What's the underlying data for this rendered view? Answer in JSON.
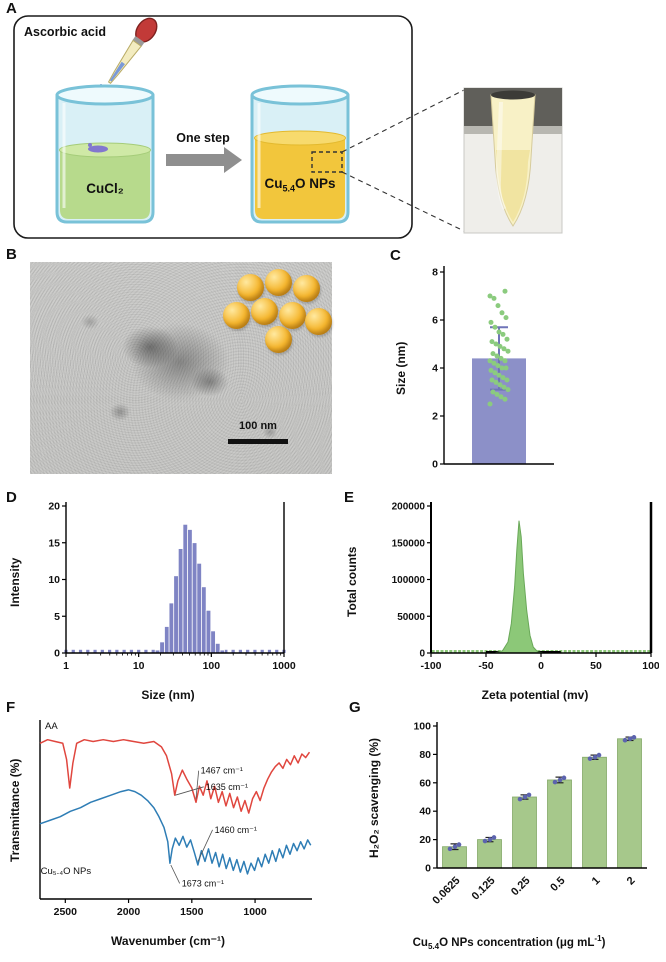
{
  "panelA": {
    "label": "A",
    "ascorbic_label": "Ascorbic acid",
    "one_step_label": "One step",
    "beaker1_label": "CuCl₂",
    "np_label_pre": "Cu",
    "np_label_sub": "5.4",
    "np_label_post": "O NPs"
  },
  "panelB": {
    "label": "B",
    "scalebar_label": "100 nm"
  },
  "panelC": {
    "label": "C"
  },
  "panelD": {
    "label": "D"
  },
  "panelE": {
    "label": "E"
  },
  "panelF": {
    "label": "F"
  },
  "panelG": {
    "label": "G"
  },
  "g_xlabel": {
    "pre": "Cu",
    "sub": "5.4",
    "post": "O NPs concentration  (μg mL",
    "sup": "-1",
    "end": ")"
  },
  "chart_data": [
    {
      "id": "np-size-bar",
      "type": "bar",
      "ylabel": "Size (nm)",
      "ylim": [
        0,
        8
      ],
      "yticks": [
        0,
        2,
        4,
        6,
        8
      ],
      "mean": 4.4,
      "sd": 1.3,
      "bar_color": "#8c90c8",
      "error_color": "#6f74b8",
      "dot_color": "#8bcb7e",
      "points": [
        2.5,
        2.7,
        2.8,
        2.9,
        3.0,
        3.1,
        3.2,
        3.3,
        3.4,
        3.5,
        3.5,
        3.6,
        3.7,
        3.8,
        3.9,
        4.0,
        4.0,
        4.1,
        4.2,
        4.3,
        4.3,
        4.4,
        4.5,
        4.6,
        4.7,
        4.8,
        4.9,
        5.0,
        5.1,
        5.2,
        5.4,
        5.5,
        5.7,
        5.9,
        6.1,
        6.3,
        6.6,
        6.9,
        7.0,
        7.2
      ]
    },
    {
      "id": "dls-intensity",
      "type": "histogram",
      "xlabel": "Size (nm)",
      "ylabel": "Intensity",
      "xscale": "log",
      "xlim": [
        1,
        1000
      ],
      "xticks": [
        1,
        10,
        100,
        1000
      ],
      "ylim": [
        0,
        20
      ],
      "yticks": [
        0,
        5,
        10,
        15,
        20
      ],
      "bar_color": "#7f84c4",
      "marker_color": "#7f84c4",
      "bins": [
        {
          "x": 18.2,
          "y": 0.4
        },
        {
          "x": 21.0,
          "y": 1.5
        },
        {
          "x": 24.4,
          "y": 3.6
        },
        {
          "x": 28.2,
          "y": 6.8
        },
        {
          "x": 32.7,
          "y": 10.5
        },
        {
          "x": 37.8,
          "y": 14.2
        },
        {
          "x": 43.8,
          "y": 17.5
        },
        {
          "x": 50.7,
          "y": 16.8
        },
        {
          "x": 58.8,
          "y": 15.0
        },
        {
          "x": 68.1,
          "y": 12.2
        },
        {
          "x": 78.8,
          "y": 9.0
        },
        {
          "x": 91.3,
          "y": 5.8
        },
        {
          "x": 105.7,
          "y": 3.0
        },
        {
          "x": 122.4,
          "y": 1.3
        },
        {
          "x": 141.8,
          "y": 0.4
        }
      ]
    },
    {
      "id": "zeta-potential",
      "type": "peak",
      "xlabel": "Zeta potential (mv)",
      "ylabel": "Total counts",
      "xlim": [
        -100,
        100
      ],
      "xticks": [
        -100,
        -50,
        0,
        50,
        100
      ],
      "ylim": [
        0,
        200000
      ],
      "yticks": [
        0,
        50000,
        100000,
        150000,
        200000
      ],
      "fill_color": "#8cc878",
      "edge_color": "#69a858",
      "peak_x": -20,
      "peak_y": 180000,
      "peak": [
        [
          -42,
          0
        ],
        [
          -35,
          3000
        ],
        [
          -30,
          15000
        ],
        [
          -27,
          40000
        ],
        [
          -24,
          90000
        ],
        [
          -22,
          140000
        ],
        [
          -20,
          180000
        ],
        [
          -18,
          158000
        ],
        [
          -16,
          108000
        ],
        [
          -13,
          58000
        ],
        [
          -10,
          24000
        ],
        [
          -7,
          8000
        ],
        [
          -3,
          1500
        ],
        [
          2,
          0
        ]
      ]
    },
    {
      "id": "ftir",
      "type": "lines",
      "xlabel": "Wavenumber (cm⁻¹)",
      "ylabel": "Transmittance (%)",
      "xlim": [
        2700,
        550
      ],
      "xticks": [
        2500,
        2000,
        1500,
        1000
      ],
      "series": [
        {
          "name": "AA",
          "color": "#e0463e",
          "label_pos": [
            2660,
            5
          ],
          "points": [
            [
              2700,
              13
            ],
            [
              2640,
              11
            ],
            [
              2580,
              12
            ],
            [
              2520,
              13
            ],
            [
              2490,
              22
            ],
            [
              2465,
              38
            ],
            [
              2440,
              24
            ],
            [
              2410,
              13
            ],
            [
              2350,
              11
            ],
            [
              2280,
              12
            ],
            [
              2200,
              11
            ],
            [
              2120,
              12
            ],
            [
              2040,
              11
            ],
            [
              1960,
              12
            ],
            [
              1880,
              13
            ],
            [
              1800,
              12
            ],
            [
              1740,
              15
            ],
            [
              1700,
              20
            ],
            [
              1660,
              30
            ],
            [
              1635,
              42
            ],
            [
              1610,
              34
            ],
            [
              1575,
              28
            ],
            [
              1540,
              33
            ],
            [
              1500,
              38
            ],
            [
              1467,
              46
            ],
            [
              1440,
              37
            ],
            [
              1410,
              42
            ],
            [
              1380,
              34
            ],
            [
              1350,
              44
            ],
            [
              1320,
              37
            ],
            [
              1290,
              46
            ],
            [
              1260,
              40
            ],
            [
              1230,
              48
            ],
            [
              1200,
              41
            ],
            [
              1170,
              49
            ],
            [
              1140,
              43
            ],
            [
              1110,
              51
            ],
            [
              1080,
              45
            ],
            [
              1050,
              52
            ],
            [
              1020,
              44
            ],
            [
              990,
              40
            ],
            [
              960,
              45
            ],
            [
              930,
              38
            ],
            [
              900,
              33
            ],
            [
              870,
              29
            ],
            [
              840,
              26
            ],
            [
              810,
              24
            ],
            [
              780,
              27
            ],
            [
              750,
              22
            ],
            [
              720,
              25
            ],
            [
              690,
              20
            ],
            [
              660,
              24
            ],
            [
              630,
              19
            ],
            [
              600,
              21
            ],
            [
              570,
              18
            ]
          ]
        },
        {
          "name": "Cu₅.₄O NPs",
          "color": "#2e7db5",
          "label_pos": [
            2695,
            86
          ],
          "points": [
            [
              2700,
              58
            ],
            [
              2620,
              56
            ],
            [
              2540,
              54
            ],
            [
              2460,
              51
            ],
            [
              2380,
              49
            ],
            [
              2300,
              46
            ],
            [
              2220,
              44
            ],
            [
              2140,
              42
            ],
            [
              2060,
              40
            ],
            [
              2000,
              39
            ],
            [
              1950,
              40
            ],
            [
              1900,
              42
            ],
            [
              1850,
              45
            ],
            [
              1800,
              49
            ],
            [
              1760,
              54
            ],
            [
              1720,
              60
            ],
            [
              1690,
              68
            ],
            [
              1673,
              80
            ],
            [
              1655,
              72
            ],
            [
              1630,
              66
            ],
            [
              1600,
              70
            ],
            [
              1570,
              65
            ],
            [
              1540,
              71
            ],
            [
              1510,
              67
            ],
            [
              1480,
              74
            ],
            [
              1452,
              81
            ],
            [
              1424,
              73
            ],
            [
              1396,
              79
            ],
            [
              1368,
              72
            ],
            [
              1340,
              80
            ],
            [
              1312,
              74
            ],
            [
              1284,
              82
            ],
            [
              1256,
              75
            ],
            [
              1228,
              83
            ],
            [
              1200,
              77
            ],
            [
              1172,
              84
            ],
            [
              1144,
              78
            ],
            [
              1116,
              85
            ],
            [
              1088,
              79
            ],
            [
              1060,
              86
            ],
            [
              1032,
              80
            ],
            [
              1004,
              84
            ],
            [
              976,
              77
            ],
            [
              948,
              82
            ],
            [
              920,
              75
            ],
            [
              892,
              80
            ],
            [
              864,
              73
            ],
            [
              836,
              79
            ],
            [
              808,
              72
            ],
            [
              780,
              77
            ],
            [
              752,
              70
            ],
            [
              724,
              75
            ],
            [
              696,
              69
            ],
            [
              668,
              73
            ],
            [
              640,
              68
            ],
            [
              612,
              72
            ],
            [
              584,
              67
            ],
            [
              560,
              70
            ]
          ]
        }
      ],
      "annotations": [
        {
          "text": "1467 cm⁻¹",
          "tx": 1430,
          "tp": 30,
          "ax": 1467,
          "ap": 44
        },
        {
          "text": "1635 cm⁻¹",
          "tx": 1390,
          "tp": 39,
          "ax": 1631,
          "ap": 42
        },
        {
          "text": "1460 cm⁻¹",
          "tx": 1320,
          "tp": 63,
          "ax": 1452,
          "ap": 79
        },
        {
          "text": "1673 cm⁻¹",
          "tx": 1580,
          "tp": 93,
          "ax": 1666,
          "ap": 81
        }
      ]
    },
    {
      "id": "h2o2-scavenging",
      "type": "bar-scatter",
      "ylabel": "H₂O₂ scavenging (%)",
      "ylim": [
        0,
        100
      ],
      "yticks": [
        0,
        20,
        40,
        60,
        80,
        100
      ],
      "categories": [
        "0.0625",
        "0.125",
        "0.25",
        "0.5",
        "1",
        "2"
      ],
      "values": [
        15,
        20,
        50,
        62,
        78,
        91
      ],
      "errors": [
        2,
        1.5,
        1.5,
        2,
        1.5,
        1.2
      ],
      "dots": [
        [
          13.5,
          15,
          16.5
        ],
        [
          19,
          20,
          21.5
        ],
        [
          48.5,
          50,
          51.5
        ],
        [
          60.5,
          62,
          63.5
        ],
        [
          77,
          78,
          79.5
        ],
        [
          90,
          91,
          92
        ]
      ],
      "bar_color": "#a6c88b",
      "bar_edge": "#84a868",
      "dot_color": "#5c63ae"
    }
  ]
}
